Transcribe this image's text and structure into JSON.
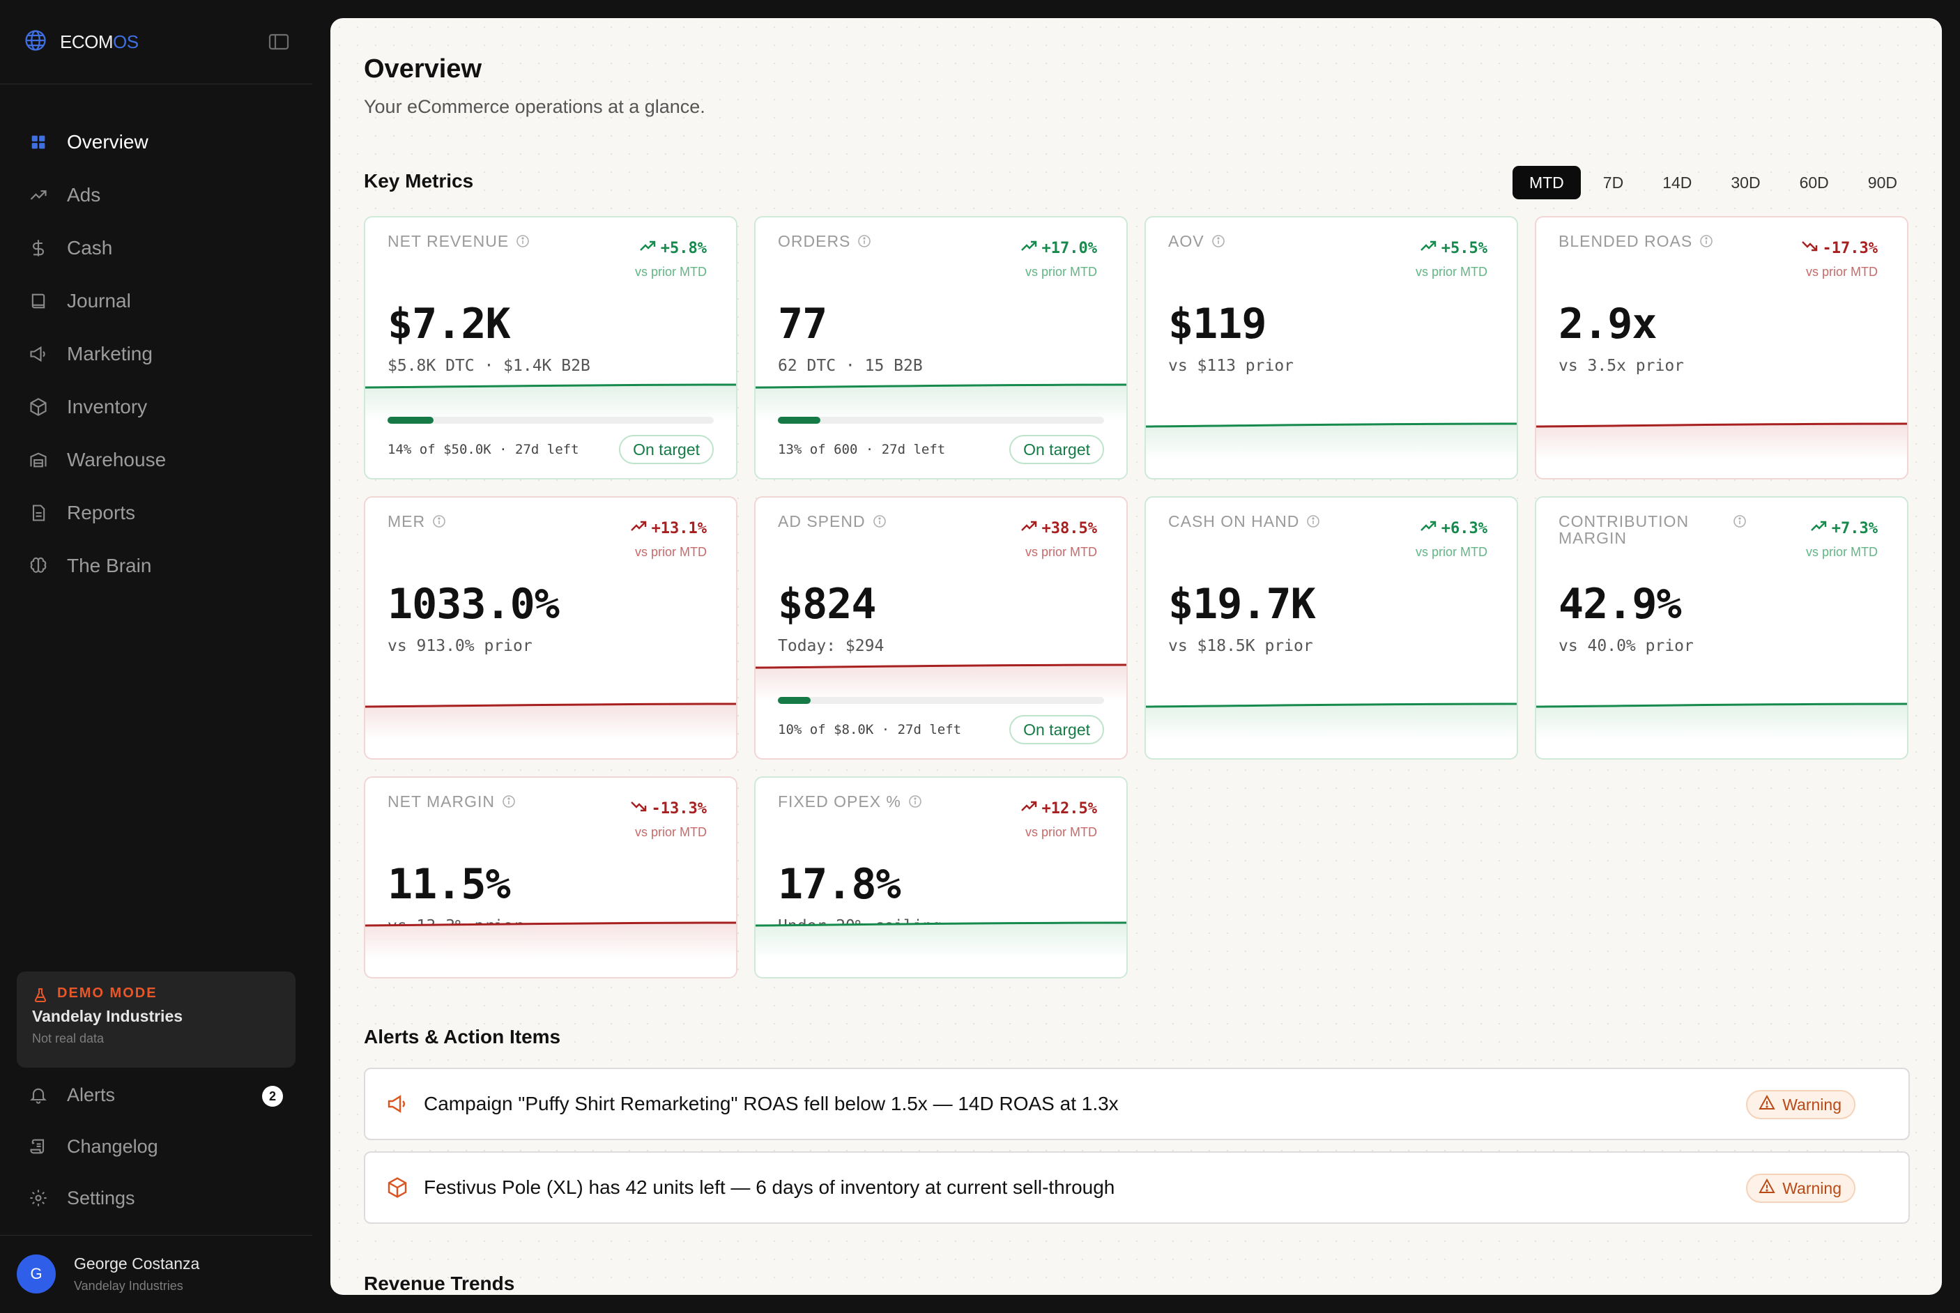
{
  "brand": {
    "name_main": "ECOM",
    "name_accent": "OS",
    "accent_color": "#3f6fe0"
  },
  "sidebar": {
    "items": [
      {
        "label": "Overview",
        "icon": "grid-icon",
        "active": true
      },
      {
        "label": "Ads",
        "icon": "trending-up-icon"
      },
      {
        "label": "Cash",
        "icon": "dollar-icon"
      },
      {
        "label": "Journal",
        "icon": "book-icon"
      },
      {
        "label": "Marketing",
        "icon": "megaphone-icon"
      },
      {
        "label": "Inventory",
        "icon": "package-icon"
      },
      {
        "label": "Warehouse",
        "icon": "warehouse-icon"
      },
      {
        "label": "Reports",
        "icon": "file-icon"
      },
      {
        "label": "The Brain",
        "icon": "brain-icon"
      }
    ],
    "demo": {
      "label": "DEMO MODE",
      "company": "Vandelay Industries",
      "note": "Not real data"
    },
    "bottom_items": [
      {
        "label": "Alerts",
        "icon": "bell-icon",
        "count": "2"
      },
      {
        "label": "Changelog",
        "icon": "scroll-icon"
      },
      {
        "label": "Settings",
        "icon": "gear-icon"
      }
    ],
    "user": {
      "initial": "G",
      "name": "George Costanza",
      "company": "Vandelay Industries"
    }
  },
  "page": {
    "title": "Overview",
    "subtitle": "Your eCommerce operations at a glance."
  },
  "key_metrics": {
    "title": "Key Metrics",
    "ranges": [
      "MTD",
      "7D",
      "14D",
      "30D",
      "60D",
      "90D"
    ],
    "selected_range": "MTD",
    "cards": [
      {
        "label": "NET REVENUE",
        "delta": "+5.8%",
        "trend": "up",
        "vs": "vs prior MTD",
        "value": "$7.2K",
        "sub": "$5.8K DTC · $1.4K B2B",
        "progress": {
          "fraction": 0.14,
          "text": "14% of $50.0K · 27d left",
          "status": "On target"
        }
      },
      {
        "label": "ORDERS",
        "delta": "+17.0%",
        "trend": "up",
        "vs": "vs prior MTD",
        "value": "77",
        "sub": "62 DTC · 15 B2B",
        "progress": {
          "fraction": 0.13,
          "text": "13% of 600 · 27d left",
          "status": "On target"
        }
      },
      {
        "label": "AOV",
        "delta": "+5.5%",
        "trend": "up",
        "vs": "vs prior MTD",
        "value": "$119",
        "sub": "vs $113 prior"
      },
      {
        "label": "BLENDED ROAS",
        "delta": "-17.3%",
        "trend": "down",
        "vs": "vs prior MTD",
        "value": "2.9x",
        "sub": "vs 3.5x prior"
      },
      {
        "label": "MER",
        "delta": "+13.1%",
        "trend": "up",
        "tone": "negative",
        "vs": "vs prior MTD",
        "value": "1033.0%",
        "sub": "vs 913.0% prior"
      },
      {
        "label": "AD SPEND",
        "delta": "+38.5%",
        "trend": "up",
        "tone": "negative",
        "vs": "vs prior MTD",
        "value": "$824",
        "sub": "Today: $294",
        "progress": {
          "fraction": 0.1,
          "text": "10% of $8.0K · 27d left",
          "status": "On target"
        }
      },
      {
        "label": "CASH ON HAND",
        "delta": "+6.3%",
        "trend": "up",
        "vs": "vs prior MTD",
        "value": "$19.7K",
        "sub": "vs $18.5K prior"
      },
      {
        "label": "CONTRIBUTION MARGIN",
        "delta": "+7.3%",
        "trend": "up",
        "vs": "vs prior MTD",
        "value": "42.9%",
        "sub": "vs 40.0% prior"
      },
      {
        "label": "NET MARGIN",
        "delta": "-13.3%",
        "trend": "down",
        "vs": "vs prior MTD",
        "value": "11.5%",
        "sub": "vs 13.3% prior"
      },
      {
        "label": "FIXED OPEX %",
        "delta": "+12.5%",
        "trend": "up",
        "tone": "negative",
        "vs": "vs prior MTD",
        "value": "17.8%",
        "sub": "Under 20% ceiling",
        "spark_tone": "positive"
      }
    ]
  },
  "alerts": {
    "title": "Alerts & Action Items",
    "items": [
      {
        "icon": "megaphone-icon",
        "text": "Campaign \"Puffy Shirt Remarketing\" ROAS fell below 1.5x — 14D ROAS at 1.3x",
        "badge": "Warning"
      },
      {
        "icon": "package-icon",
        "text": "Festivus Pole (XL) has 42 units left — 6 days of inventory at current sell-through",
        "badge": "Warning"
      }
    ]
  },
  "revenue_trends": {
    "title": "Revenue Trends"
  },
  "colors": {
    "positive": "#158a4c",
    "negative": "#a81f1f",
    "warning": "#b84a16",
    "accent": "#2f5ee8"
  }
}
